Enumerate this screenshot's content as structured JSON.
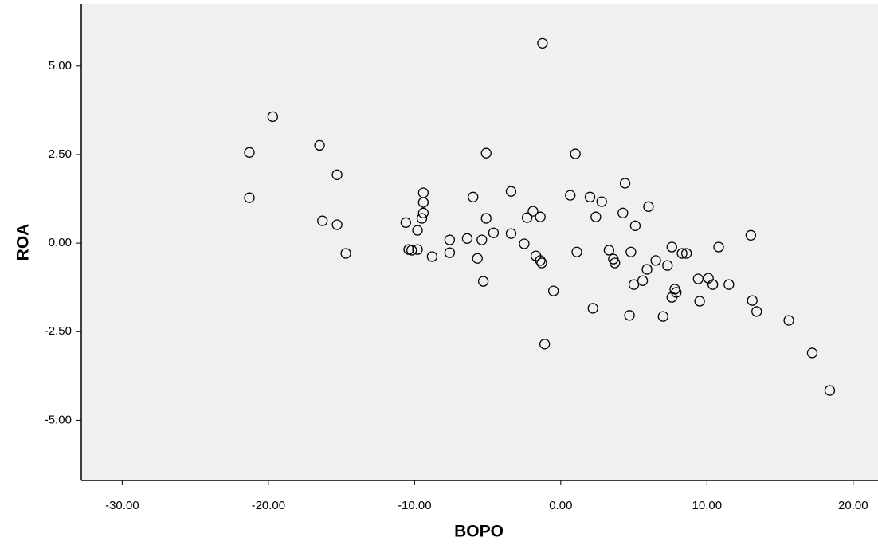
{
  "chart_data": {
    "type": "scatter",
    "x_label": "BOPO",
    "y_label": "ROA",
    "color": "#000000",
    "background": "#f0f0f0",
    "grid": false,
    "xlim": [
      -32.8,
      21.7
    ],
    "xticks": [
      {
        "value": -30,
        "label": "-30.00"
      },
      {
        "value": -20,
        "label": "-20.00"
      },
      {
        "value": -10,
        "label": "-10.00"
      },
      {
        "value": 0,
        "label": "0.00"
      },
      {
        "value": 10,
        "label": "10.00"
      },
      {
        "value": 20,
        "label": "20.00"
      }
    ],
    "ylim": [
      -6.7,
      6.75
    ],
    "yticks": [
      {
        "value": -5,
        "label": "-5.00"
      },
      {
        "value": -2.5,
        "label": "-2.50"
      },
      {
        "value": 0,
        "label": "0.00"
      },
      {
        "value": 2.5,
        "label": "2.50"
      },
      {
        "value": 5,
        "label": "5.00"
      }
    ],
    "x": [
      -21.3,
      -21.3,
      -19.7,
      -16.5,
      -16.3,
      -15.3,
      -15.3,
      -14.7,
      -10.6,
      -10.4,
      -10.2,
      -9.8,
      -9.8,
      -9.4,
      -9.4,
      -9.4,
      -9.5,
      -8.8,
      -7.6,
      -7.6,
      -6.4,
      -6.0,
      -5.7,
      -5.4,
      -5.3,
      -5.1,
      -5.1,
      -4.6,
      -3.4,
      -3.4,
      -2.5,
      -2.3,
      -1.9,
      -1.7,
      -1.4,
      -1.4,
      -1.3,
      -1.25,
      -1.1,
      -0.5,
      0.65,
      1.0,
      1.1,
      2.0,
      2.2,
      2.4,
      2.8,
      3.3,
      3.6,
      3.7,
      4.4,
      4.25,
      4.7,
      4.8,
      5.0,
      5.1,
      5.6,
      5.9,
      6.0,
      6.5,
      7.0,
      7.3,
      7.6,
      7.6,
      7.8,
      7.9,
      8.3,
      8.6,
      9.4,
      9.5,
      10.1,
      10.4,
      10.8,
      11.5,
      13.0,
      13.1,
      13.4,
      15.6,
      17.2,
      18.4
    ],
    "values": [
      2.56,
      1.28,
      3.57,
      2.76,
      0.63,
      1.93,
      0.52,
      -0.29,
      0.58,
      -0.18,
      -0.2,
      -0.18,
      0.36,
      1.42,
      1.15,
      0.85,
      0.7,
      -0.38,
      0.09,
      -0.27,
      0.13,
      1.3,
      -0.43,
      0.09,
      -1.08,
      2.54,
      0.7,
      0.29,
      0.27,
      1.46,
      -0.02,
      0.72,
      0.9,
      -0.36,
      0.74,
      -0.49,
      -0.56,
      5.64,
      -2.85,
      -1.35,
      1.35,
      2.52,
      -0.25,
      1.3,
      -1.84,
      0.74,
      1.17,
      -0.2,
      -0.45,
      -0.56,
      1.69,
      0.85,
      -2.04,
      -0.25,
      -1.17,
      0.49,
      -1.06,
      -0.74,
      1.03,
      -0.49,
      -2.07,
      -0.63,
      -0.11,
      -1.53,
      -1.3,
      -1.39,
      -0.29,
      -0.29,
      -1.01,
      -1.64,
      -0.99,
      -1.17,
      -0.11,
      -1.17,
      0.22,
      -1.62,
      -1.93,
      -2.18,
      -3.1,
      -4.16
    ]
  }
}
